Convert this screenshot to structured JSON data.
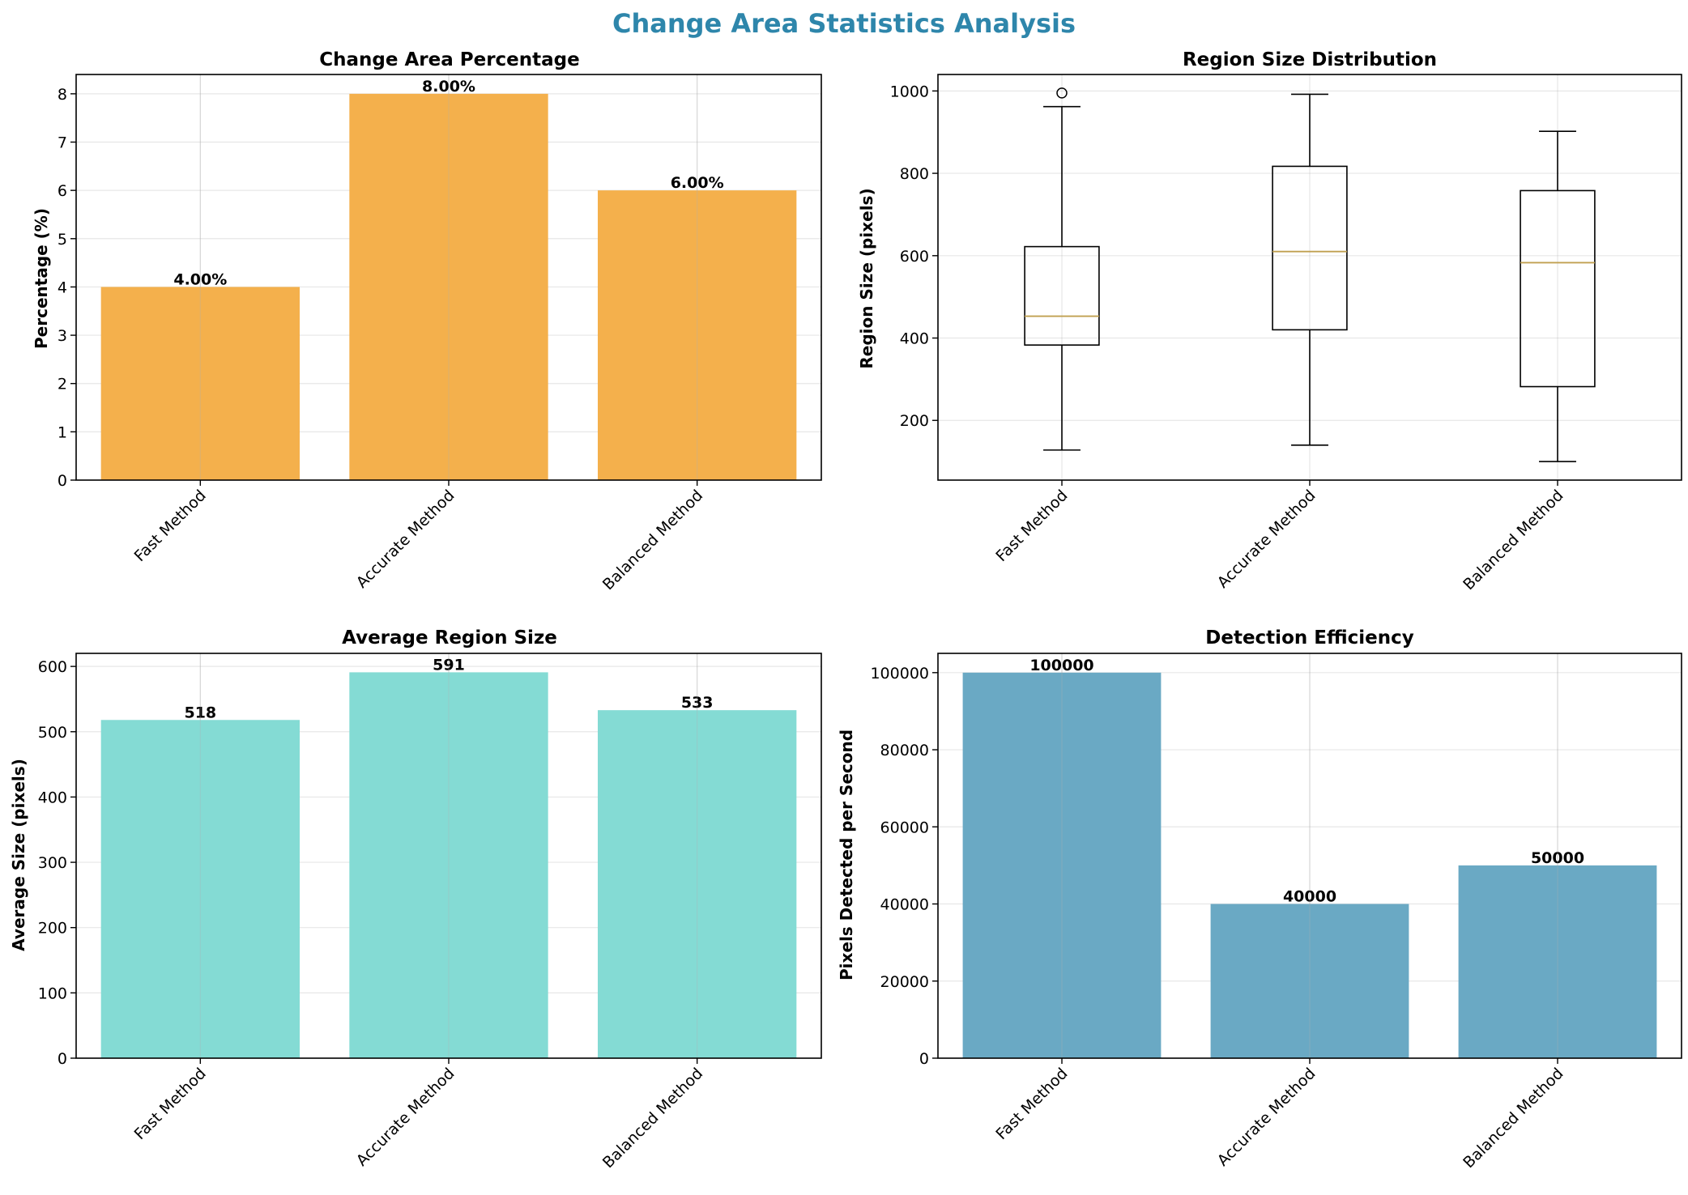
{
  "figure": {
    "title": "Change Area Statistics Analysis"
  },
  "chart_data": [
    {
      "type": "bar",
      "title": "Change Area Percentage",
      "xlabel": "",
      "ylabel": "Percentage (%)",
      "categories": [
        "Fast Method",
        "Accurate Method",
        "Balanced Method"
      ],
      "values": [
        4.0,
        8.0,
        6.0
      ],
      "value_labels": [
        "4.00%",
        "8.00%",
        "6.00%"
      ],
      "ylim": [
        0,
        8.4
      ],
      "yticks": [
        0,
        1,
        2,
        3,
        4,
        5,
        6,
        7,
        8
      ],
      "color": "#f4b04c",
      "grid": true
    },
    {
      "type": "box",
      "title": "Region Size Distribution",
      "xlabel": "",
      "ylabel": "Region Size (pixels)",
      "categories": [
        "Fast Method",
        "Accurate Method",
        "Balanced Method"
      ],
      "boxes": [
        {
          "whisker_low": 128,
          "q1": 383,
          "median": 453,
          "q3": 622,
          "whisker_high": 962,
          "outliers": [
            995
          ]
        },
        {
          "whisker_low": 140,
          "q1": 420,
          "median": 610,
          "q3": 817,
          "whisker_high": 992,
          "outliers": []
        },
        {
          "whisker_low": 100,
          "q1": 282,
          "median": 583,
          "q3": 758,
          "whisker_high": 902,
          "outliers": []
        }
      ],
      "ylim": [
        55,
        1040
      ],
      "yticks": [
        200,
        400,
        600,
        800,
        1000
      ],
      "median_color": "#c0a050",
      "grid": true
    },
    {
      "type": "bar",
      "title": "Average Region Size",
      "xlabel": "",
      "ylabel": "Average Size (pixels)",
      "categories": [
        "Fast Method",
        "Accurate Method",
        "Balanced Method"
      ],
      "values": [
        518,
        591,
        533
      ],
      "value_labels": [
        "518",
        "591",
        "533"
      ],
      "ylim": [
        0,
        620
      ],
      "yticks": [
        0,
        100,
        200,
        300,
        400,
        500,
        600
      ],
      "color": "#84dbd4",
      "grid": true
    },
    {
      "type": "bar",
      "title": "Detection Efficiency",
      "xlabel": "",
      "ylabel": "Pixels Detected per Second",
      "categories": [
        "Fast Method",
        "Accurate Method",
        "Balanced Method"
      ],
      "values": [
        100000,
        40000,
        50000
      ],
      "value_labels": [
        "100000",
        "40000",
        "50000"
      ],
      "ylim": [
        0,
        105000
      ],
      "yticks": [
        0,
        20000,
        40000,
        60000,
        80000,
        100000
      ],
      "color": "#6aa9c4",
      "grid": true
    }
  ]
}
